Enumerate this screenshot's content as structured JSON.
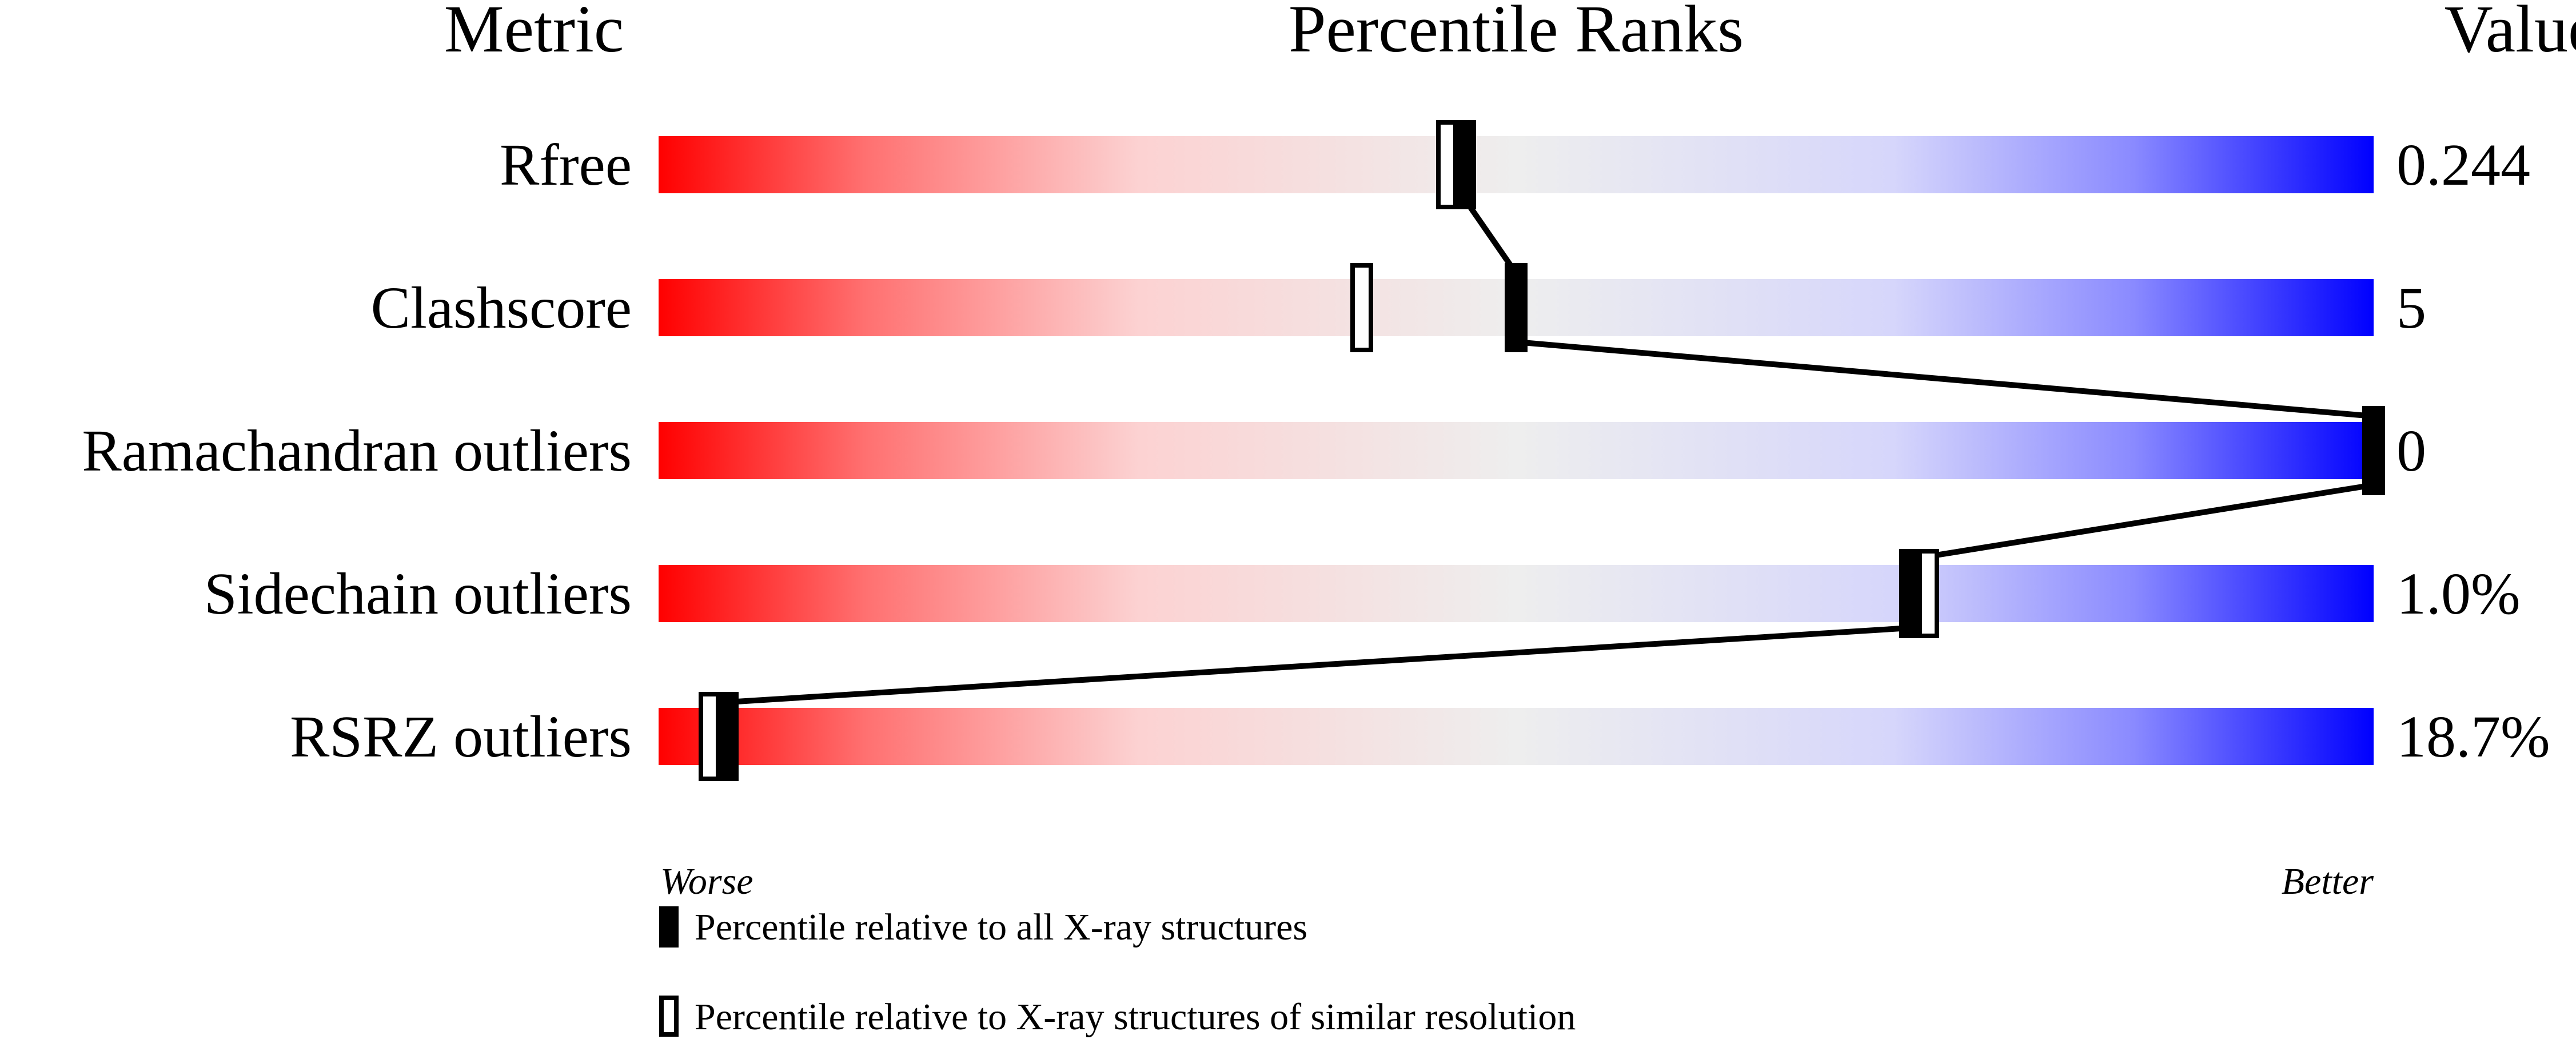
{
  "chart_data": {
    "type": "percentile-slider",
    "headers": {
      "metric": "Metric",
      "ranks": "Percentile Ranks",
      "value": "Value"
    },
    "xlim": [
      0,
      100
    ],
    "axis_ends": {
      "left": "Worse",
      "right": "Better"
    },
    "gradient_colors": {
      "worse": "#ff0000",
      "middle": "#eeeeee",
      "better": "#0000ff"
    },
    "rows": [
      {
        "metric": "Rfree",
        "value": "0.244",
        "percentile_all": 47,
        "percentile_similar": 46
      },
      {
        "metric": "Clashscore",
        "value": "5",
        "percentile_all": 50,
        "percentile_similar": 41
      },
      {
        "metric": "Ramachandran outliers",
        "value": "0",
        "percentile_all": 100,
        "percentile_similar": 100
      },
      {
        "metric": "Sidechain outliers",
        "value": "1.0%",
        "percentile_all": 73,
        "percentile_similar": 74
      },
      {
        "metric": "RSRZ outliers",
        "value": "18.7%",
        "percentile_all": 4,
        "percentile_similar": 3
      }
    ],
    "legend": [
      {
        "marker": "filled",
        "label": "Percentile relative to all X-ray structures"
      },
      {
        "marker": "open",
        "label": "Percentile relative to X-ray structures of similar resolution"
      }
    ]
  }
}
